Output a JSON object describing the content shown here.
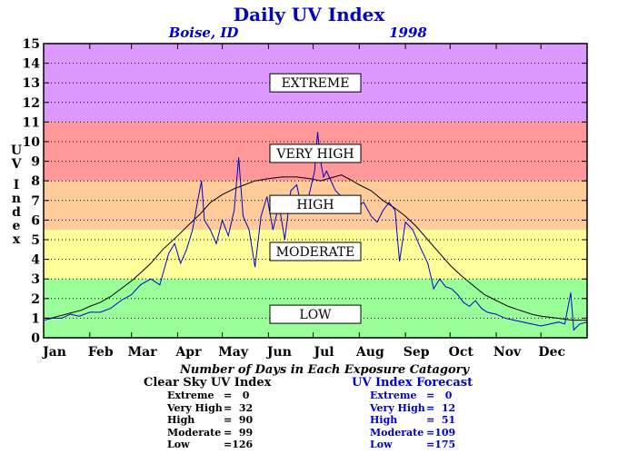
{
  "chart_data": {
    "type": "line",
    "title": "Daily UV Index",
    "subtitle_location": "Boise, ID",
    "subtitle_year": "1998",
    "ylabel": "UV Index",
    "xlabel": "",
    "ylim": [
      0,
      15
    ],
    "xlim": [
      0,
      365
    ],
    "yticks": [
      "0",
      "1",
      "2",
      "3",
      "4",
      "5",
      "6",
      "7",
      "8",
      "9",
      "10",
      "11",
      "12",
      "13",
      "14",
      "15"
    ],
    "months": [
      {
        "label": "Jan",
        "day": 0
      },
      {
        "label": "Feb",
        "day": 31
      },
      {
        "label": "Mar",
        "day": 59
      },
      {
        "label": "Apr",
        "day": 90
      },
      {
        "label": "May",
        "day": 120
      },
      {
        "label": "Jun",
        "day": 151
      },
      {
        "label": "Jul",
        "day": 181
      },
      {
        "label": "Aug",
        "day": 212
      },
      {
        "label": "Sep",
        "day": 243
      },
      {
        "label": "Oct",
        "day": 273
      },
      {
        "label": "Nov",
        "day": 304
      },
      {
        "label": "Dec",
        "day": 334
      }
    ],
    "zones": [
      {
        "label": "LOW",
        "from": 0,
        "to": 3,
        "color": "#99ff99",
        "label_at": 1.2
      },
      {
        "label": "MODERATE",
        "from": 3,
        "to": 5.5,
        "color": "#ffff99",
        "label_at": 4.4
      },
      {
        "label": "HIGH",
        "from": 5.5,
        "to": 8,
        "color": "#ffcc99",
        "label_at": 6.8
      },
      {
        "label": "VERY HIGH",
        "from": 8,
        "to": 11,
        "color": "#ff9999",
        "label_at": 9.4
      },
      {
        "label": "EXTREME",
        "from": 11,
        "to": 15,
        "color": "#dd99ff",
        "label_at": 13.0
      }
    ],
    "grid": true,
    "series": [
      {
        "name": "Clear Sky UV Index",
        "color": "#000000",
        "points": [
          [
            0,
            1.0
          ],
          [
            5,
            1.0
          ],
          [
            10,
            1.1
          ],
          [
            15,
            1.2
          ],
          [
            20,
            1.3
          ],
          [
            25,
            1.4
          ],
          [
            31,
            1.6
          ],
          [
            38,
            1.8
          ],
          [
            45,
            2.1
          ],
          [
            52,
            2.5
          ],
          [
            59,
            2.9
          ],
          [
            65,
            3.3
          ],
          [
            72,
            3.8
          ],
          [
            80,
            4.5
          ],
          [
            90,
            5.2
          ],
          [
            98,
            5.8
          ],
          [
            105,
            6.3
          ],
          [
            112,
            6.9
          ],
          [
            120,
            7.3
          ],
          [
            128,
            7.6
          ],
          [
            135,
            7.8
          ],
          [
            142,
            8.0
          ],
          [
            150,
            8.1
          ],
          [
            160,
            8.2
          ],
          [
            170,
            8.2
          ],
          [
            180,
            8.1
          ],
          [
            186,
            8.0
          ],
          [
            195,
            8.2
          ],
          [
            200,
            8.3
          ],
          [
            205,
            8.1
          ],
          [
            212,
            7.8
          ],
          [
            220,
            7.5
          ],
          [
            228,
            7.0
          ],
          [
            236,
            6.6
          ],
          [
            243,
            6.2
          ],
          [
            250,
            5.7
          ],
          [
            258,
            5.0
          ],
          [
            266,
            4.3
          ],
          [
            273,
            3.7
          ],
          [
            280,
            3.2
          ],
          [
            288,
            2.7
          ],
          [
            296,
            2.2
          ],
          [
            304,
            1.9
          ],
          [
            312,
            1.6
          ],
          [
            320,
            1.4
          ],
          [
            328,
            1.2
          ],
          [
            334,
            1.1
          ],
          [
            345,
            1.0
          ],
          [
            355,
            0.9
          ],
          [
            365,
            0.9
          ]
        ]
      },
      {
        "name": "UV Index Forecast",
        "color": "#0000cc",
        "points": [
          [
            0,
            0.9
          ],
          [
            6,
            1.0
          ],
          [
            12,
            1.0
          ],
          [
            18,
            1.2
          ],
          [
            24,
            1.1
          ],
          [
            31,
            1.3
          ],
          [
            38,
            1.3
          ],
          [
            45,
            1.5
          ],
          [
            52,
            1.9
          ],
          [
            59,
            2.2
          ],
          [
            65,
            2.7
          ],
          [
            72,
            3.0
          ],
          [
            78,
            2.7
          ],
          [
            84,
            4.3
          ],
          [
            88,
            4.8
          ],
          [
            92,
            3.8
          ],
          [
            96,
            4.5
          ],
          [
            100,
            5.5
          ],
          [
            104,
            7.2
          ],
          [
            106,
            8.0
          ],
          [
            108,
            6.0
          ],
          [
            112,
            5.5
          ],
          [
            116,
            4.8
          ],
          [
            120,
            6.0
          ],
          [
            124,
            5.2
          ],
          [
            128,
            6.5
          ],
          [
            131,
            9.2
          ],
          [
            134,
            6.2
          ],
          [
            138,
            5.5
          ],
          [
            142,
            3.6
          ],
          [
            146,
            6.2
          ],
          [
            150,
            7.2
          ],
          [
            154,
            5.5
          ],
          [
            158,
            6.8
          ],
          [
            162,
            5.0
          ],
          [
            166,
            7.5
          ],
          [
            170,
            7.8
          ],
          [
            174,
            6.4
          ],
          [
            178,
            7.2
          ],
          [
            182,
            8.5
          ],
          [
            184,
            10.5
          ],
          [
            186,
            9.0
          ],
          [
            188,
            8.2
          ],
          [
            190,
            8.5
          ],
          [
            196,
            7.5
          ],
          [
            200,
            7.2
          ],
          [
            205,
            7.0
          ],
          [
            210,
            6.7
          ],
          [
            215,
            6.9
          ],
          [
            220,
            6.2
          ],
          [
            224,
            5.9
          ],
          [
            228,
            6.5
          ],
          [
            232,
            6.9
          ],
          [
            236,
            6.5
          ],
          [
            239,
            3.9
          ],
          [
            243,
            5.9
          ],
          [
            248,
            5.5
          ],
          [
            253,
            4.6
          ],
          [
            258,
            3.8
          ],
          [
            262,
            2.5
          ],
          [
            266,
            3.0
          ],
          [
            270,
            2.6
          ],
          [
            274,
            2.5
          ],
          [
            278,
            2.2
          ],
          [
            282,
            1.8
          ],
          [
            286,
            1.6
          ],
          [
            290,
            1.9
          ],
          [
            294,
            1.5
          ],
          [
            298,
            1.3
          ],
          [
            304,
            1.2
          ],
          [
            310,
            1.0
          ],
          [
            316,
            0.9
          ],
          [
            322,
            0.8
          ],
          [
            328,
            0.7
          ],
          [
            334,
            0.6
          ],
          [
            340,
            0.7
          ],
          [
            346,
            0.8
          ],
          [
            350,
            0.7
          ],
          [
            354,
            2.3
          ],
          [
            356,
            0.4
          ],
          [
            360,
            0.7
          ],
          [
            365,
            0.8
          ]
        ]
      }
    ]
  },
  "stats": {
    "title": "Number of Days in Each Exposure Catagory",
    "clear_sky": {
      "heading": "Clear Sky UV Index",
      "rows": [
        {
          "label": "Extreme",
          "value": "=   0"
        },
        {
          "label": "Very High",
          "value": "=  32"
        },
        {
          "label": "High",
          "value": "=  90"
        },
        {
          "label": "Moderate",
          "value": "=  99"
        },
        {
          "label": "Low",
          "value": "=126"
        }
      ]
    },
    "forecast": {
      "heading": "UV Index Forecast",
      "rows": [
        {
          "label": "Extreme",
          "value": "=   0"
        },
        {
          "label": "Very High",
          "value": "=  12"
        },
        {
          "label": "High",
          "value": "=  51"
        },
        {
          "label": "Moderate",
          "value": "=109"
        },
        {
          "label": "Low",
          "value": "=175"
        }
      ]
    }
  }
}
